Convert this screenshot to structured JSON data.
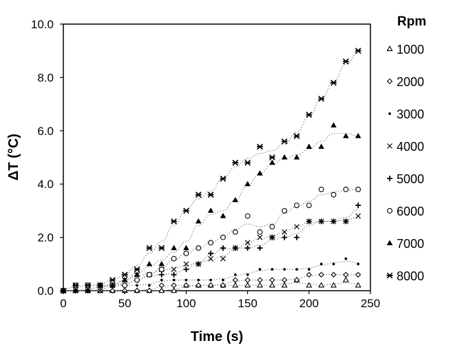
{
  "chart_data": {
    "type": "scatter",
    "xlabel": "Time (s)",
    "ylabel": "ΔT (°C)",
    "xlim": [
      0,
      250
    ],
    "ylim": [
      0,
      10
    ],
    "xticks": [
      0,
      50,
      100,
      150,
      200,
      250
    ],
    "yticks": [
      0,
      2,
      4,
      6,
      8,
      10
    ],
    "xtick_labels": [
      "0",
      "50",
      "100",
      "150",
      "200",
      "250"
    ],
    "ytick_labels": [
      "0.0",
      "2.0",
      "4.0",
      "6.0",
      "8.0",
      "10.0"
    ],
    "grid": false,
    "trendlines": true,
    "legend": {
      "title": "Rpm",
      "position": "right"
    },
    "x": [
      0,
      10,
      20,
      30,
      40,
      50,
      60,
      70,
      80,
      90,
      100,
      110,
      120,
      130,
      140,
      150,
      160,
      170,
      180,
      190,
      200,
      210,
      220,
      230,
      240
    ],
    "series": [
      {
        "name": "1000",
        "marker": "triangle-open",
        "values": [
          0.0,
          0.0,
          0.0,
          0.0,
          0.0,
          0.0,
          0.0,
          0.0,
          0.0,
          0.0,
          0.2,
          0.2,
          0.2,
          0.2,
          0.2,
          0.2,
          0.2,
          0.2,
          0.2,
          0.4,
          0.2,
          0.2,
          0.2,
          0.4,
          0.2
        ]
      },
      {
        "name": "2000",
        "marker": "diamond-open",
        "values": [
          0.0,
          0.0,
          0.0,
          0.0,
          0.0,
          0.0,
          0.0,
          0.0,
          0.2,
          0.2,
          0.2,
          0.2,
          0.2,
          0.2,
          0.4,
          0.4,
          0.4,
          0.4,
          0.4,
          0.4,
          0.6,
          0.6,
          0.6,
          0.6,
          0.6
        ]
      },
      {
        "name": "3000",
        "marker": "dot",
        "values": [
          0.0,
          0.0,
          0.0,
          0.2,
          0.2,
          0.2,
          0.2,
          0.2,
          0.4,
          0.4,
          0.4,
          0.4,
          0.4,
          0.4,
          0.6,
          0.6,
          0.8,
          0.8,
          0.8,
          0.8,
          0.8,
          1.0,
          1.0,
          1.2,
          1.0
        ]
      },
      {
        "name": "4000",
        "marker": "x",
        "values": [
          0.0,
          0.0,
          0.0,
          0.0,
          0.2,
          0.4,
          0.6,
          0.6,
          0.8,
          0.8,
          1.0,
          1.0,
          1.2,
          1.2,
          1.6,
          1.8,
          2.0,
          2.0,
          2.2,
          2.4,
          2.6,
          2.6,
          2.6,
          2.6,
          2.8
        ]
      },
      {
        "name": "5000",
        "marker": "plus",
        "values": [
          0.0,
          0.0,
          0.0,
          0.2,
          0.2,
          0.2,
          0.4,
          0.6,
          0.6,
          0.6,
          0.8,
          1.0,
          1.4,
          1.6,
          1.6,
          1.6,
          1.6,
          2.0,
          2.0,
          2.0,
          2.6,
          2.6,
          2.6,
          2.6,
          3.2
        ]
      },
      {
        "name": "6000",
        "marker": "circle-open",
        "values": [
          0.0,
          0.2,
          0.2,
          0.2,
          0.2,
          0.2,
          0.4,
          0.6,
          0.8,
          1.2,
          1.4,
          1.6,
          1.8,
          2.0,
          2.2,
          2.8,
          2.2,
          2.4,
          3.0,
          3.2,
          3.2,
          3.8,
          3.6,
          3.8,
          3.8
        ]
      },
      {
        "name": "7000",
        "marker": "triangle-filled",
        "values": [
          0.0,
          0.0,
          0.0,
          0.2,
          0.2,
          0.4,
          0.6,
          1.0,
          1.0,
          1.6,
          1.6,
          2.6,
          3.0,
          2.8,
          3.4,
          4.0,
          4.4,
          4.8,
          5.0,
          5.0,
          5.4,
          5.4,
          6.2,
          5.8,
          5.8
        ]
      },
      {
        "name": "8000",
        "marker": "star",
        "values": [
          0.0,
          0.2,
          0.2,
          0.2,
          0.4,
          0.6,
          0.8,
          1.6,
          1.6,
          2.6,
          3.0,
          3.6,
          3.6,
          4.2,
          4.8,
          4.8,
          5.4,
          5.0,
          5.6,
          5.8,
          6.6,
          7.2,
          7.8,
          8.6,
          9.0
        ]
      }
    ]
  }
}
